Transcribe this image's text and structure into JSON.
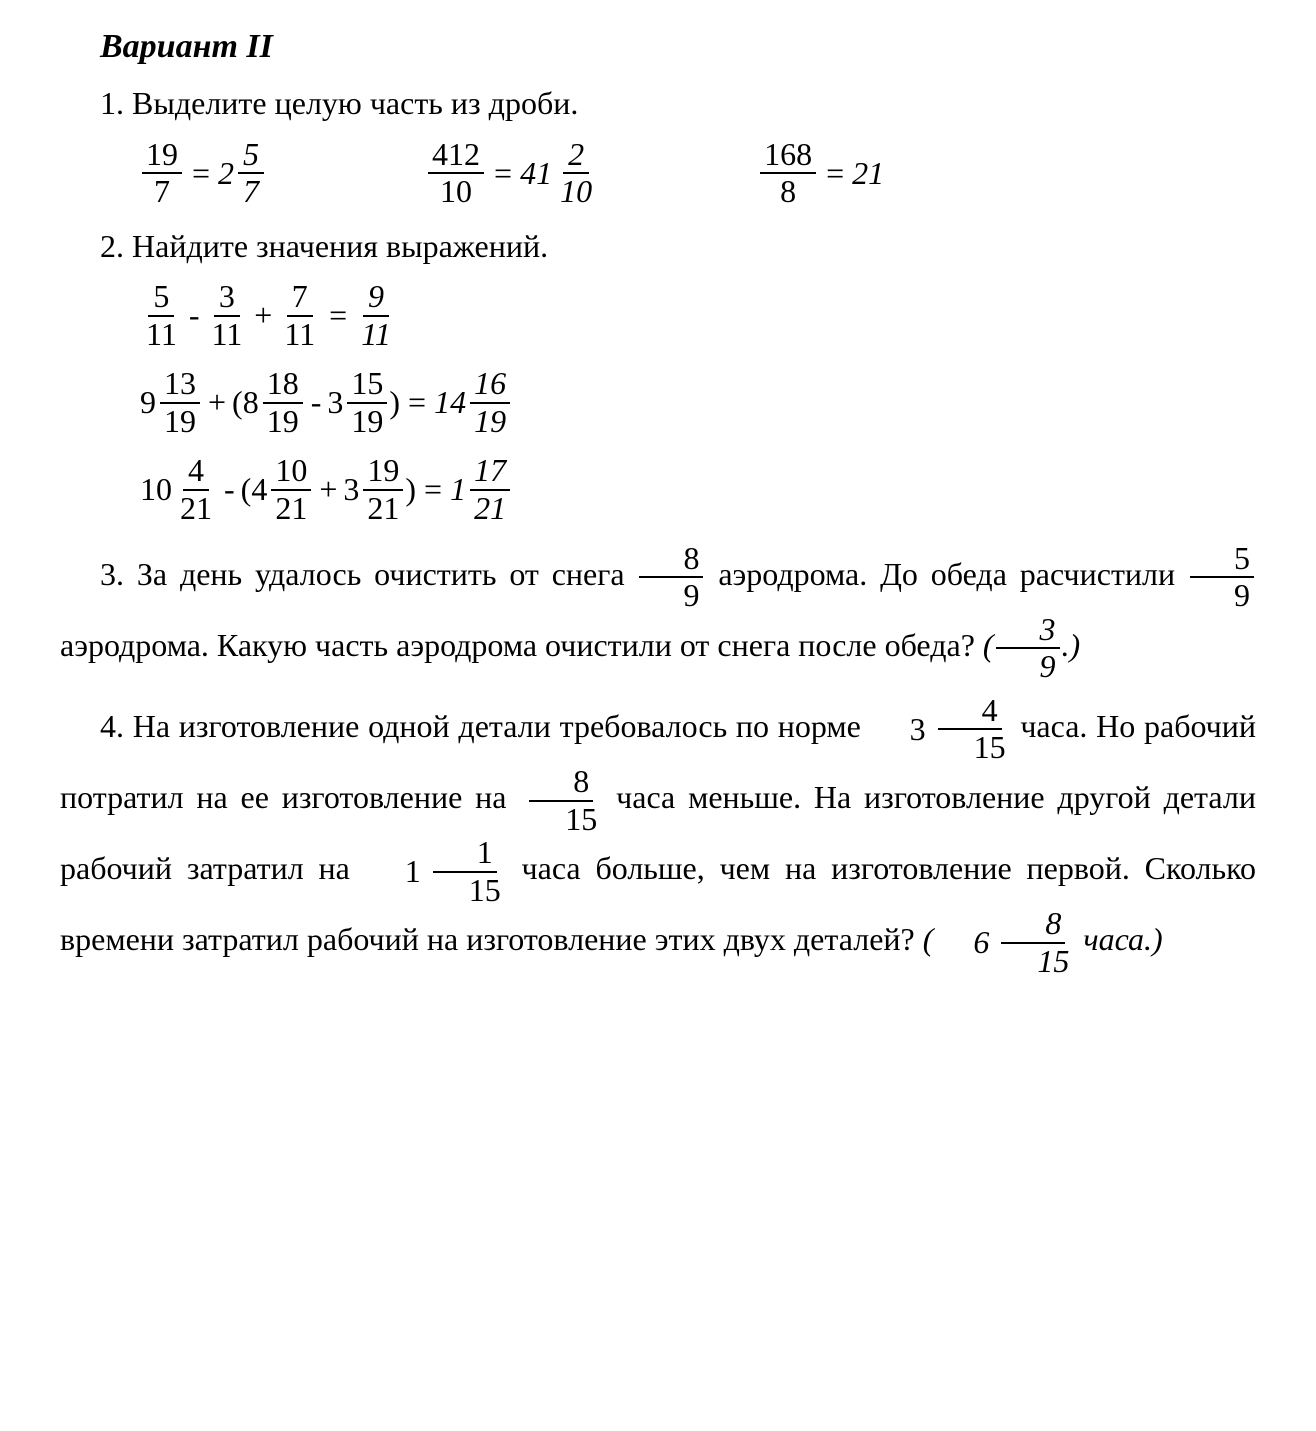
{
  "title": "Вариант II",
  "t1": {
    "prompt": "1. Выделите целую часть из дроби.",
    "items": [
      {
        "lhs": {
          "n": "19",
          "d": "7"
        },
        "rhs": {
          "w": "2",
          "n": "5",
          "d": "7"
        }
      },
      {
        "lhs": {
          "n": "412",
          "d": "10"
        },
        "rhs": {
          "w": "41",
          "n": "2",
          "d": "10"
        }
      },
      {
        "lhs": {
          "n": "168",
          "d": "8"
        },
        "rhs_int": "21"
      }
    ]
  },
  "t2": {
    "prompt": "2. Найдите значения выражений.",
    "e1": {
      "a": {
        "n": "5",
        "d": "11"
      },
      "b": {
        "n": "3",
        "d": "11"
      },
      "c": {
        "n": "7",
        "d": "11"
      },
      "ans": {
        "n": "9",
        "d": "11"
      }
    },
    "e2": {
      "a": {
        "w": "9",
        "n": "13",
        "d": "19"
      },
      "b": {
        "w": "8",
        "n": "18",
        "d": "19"
      },
      "c": {
        "w": "3",
        "n": "15",
        "d": "19"
      },
      "ans": {
        "w": "14",
        "n": "16",
        "d": "19"
      }
    },
    "e3": {
      "a": {
        "w": "10",
        "n": "4",
        "d": "21"
      },
      "b": {
        "w": "4",
        "n": "10",
        "d": "21"
      },
      "c": {
        "w": "3",
        "n": "19",
        "d": "21"
      },
      "ans": {
        "w": "1",
        "n": "17",
        "d": "21"
      }
    }
  },
  "t3": {
    "pre1": "3. За день удалось очистить от снега ",
    "f1": {
      "n": "8",
      "d": "9"
    },
    "mid1": " аэродрома. До обеда расчистили ",
    "f2": {
      "n": "5",
      "d": "9"
    },
    "mid2": " аэродрома. Какую часть аэродрома очистили от снега после обеда? ",
    "ans_open": "(",
    "ans": {
      "n": "3",
      "d": "9"
    },
    "ans_close": ".)"
  },
  "t4": {
    "pre1": "4. На изготовление одной детали требовалось по норме ",
    "f1": {
      "w": "3",
      "n": "4",
      "d": "15"
    },
    "mid1": " часа. Но рабочий потратил на ее изготовление на ",
    "f2": {
      "n": "8",
      "d": "15"
    },
    "mid2": " часа меньше. На изготовление другой детали рабочий затратил на ",
    "f3": {
      "w": "1",
      "n": "1",
      "d": "15"
    },
    "mid3": " часа больше, чем на изготовление первой. Сколько времени затратил рабочий на изготовление этих двух деталей? ",
    "ans_open": "(",
    "ans": {
      "w": "6",
      "n": "8",
      "d": "15"
    },
    "ans_unit": " часа.)"
  }
}
